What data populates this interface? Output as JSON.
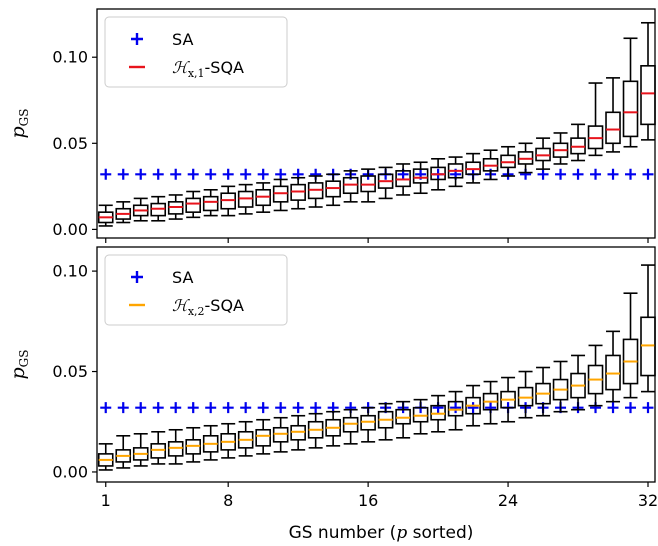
{
  "chart_data": [
    {
      "type": "box",
      "panel": "top",
      "ylabel": "p_GS",
      "xlabel": "",
      "ylim": [
        -0.005,
        0.128
      ],
      "xlim": [
        0.5,
        32.4
      ],
      "yticks": [
        0.0,
        0.05,
        0.1
      ],
      "ytick_labels": [
        "0.00",
        "0.05",
        "0.10"
      ],
      "xticks": [
        1,
        8,
        16,
        24,
        32
      ],
      "xtick_labels": [],
      "legend": {
        "placement": "top-left",
        "entries": [
          {
            "marker": "+",
            "color": "#0000ee",
            "label": "SA"
          },
          {
            "marker": "line",
            "color": "#e8141c",
            "label_main": "ℋ",
            "label_sub": "x,1",
            "label_suffix": "-SQA"
          }
        ]
      },
      "median_color": "#e8141c",
      "sa_series": {
        "name": "SA",
        "color": "#0000ee",
        "value": 0.032
      },
      "boxes": [
        {
          "x": 1,
          "whislo": 0.002,
          "q1": 0.004,
          "med": 0.007,
          "q3": 0.01,
          "whishi": 0.014
        },
        {
          "x": 2,
          "whislo": 0.004,
          "q1": 0.006,
          "med": 0.009,
          "q3": 0.012,
          "whishi": 0.016
        },
        {
          "x": 3,
          "whislo": 0.005,
          "q1": 0.008,
          "med": 0.011,
          "q3": 0.014,
          "whishi": 0.018
        },
        {
          "x": 4,
          "whislo": 0.005,
          "q1": 0.008,
          "med": 0.012,
          "q3": 0.015,
          "whishi": 0.019
        },
        {
          "x": 5,
          "whislo": 0.006,
          "q1": 0.009,
          "med": 0.013,
          "q3": 0.016,
          "whishi": 0.02
        },
        {
          "x": 6,
          "whislo": 0.007,
          "q1": 0.01,
          "med": 0.015,
          "q3": 0.018,
          "whishi": 0.022
        },
        {
          "x": 7,
          "whislo": 0.008,
          "q1": 0.011,
          "med": 0.016,
          "q3": 0.019,
          "whishi": 0.023
        },
        {
          "x": 8,
          "whislo": 0.008,
          "q1": 0.012,
          "med": 0.017,
          "q3": 0.021,
          "whishi": 0.025
        },
        {
          "x": 9,
          "whislo": 0.009,
          "q1": 0.013,
          "med": 0.018,
          "q3": 0.022,
          "whishi": 0.026
        },
        {
          "x": 10,
          "whislo": 0.01,
          "q1": 0.014,
          "med": 0.019,
          "q3": 0.023,
          "whishi": 0.027
        },
        {
          "x": 11,
          "whislo": 0.011,
          "q1": 0.016,
          "med": 0.021,
          "q3": 0.025,
          "whishi": 0.029
        },
        {
          "x": 12,
          "whislo": 0.012,
          "q1": 0.017,
          "med": 0.022,
          "q3": 0.026,
          "whishi": 0.03
        },
        {
          "x": 13,
          "whislo": 0.013,
          "q1": 0.018,
          "med": 0.023,
          "q3": 0.027,
          "whishi": 0.031
        },
        {
          "x": 14,
          "whislo": 0.014,
          "q1": 0.019,
          "med": 0.024,
          "q3": 0.028,
          "whishi": 0.032
        },
        {
          "x": 15,
          "whislo": 0.016,
          "q1": 0.021,
          "med": 0.026,
          "q3": 0.03,
          "whishi": 0.034
        },
        {
          "x": 16,
          "whislo": 0.016,
          "q1": 0.022,
          "med": 0.026,
          "q3": 0.031,
          "whishi": 0.035
        },
        {
          "x": 17,
          "whislo": 0.018,
          "q1": 0.024,
          "med": 0.028,
          "q3": 0.032,
          "whishi": 0.036
        },
        {
          "x": 18,
          "whislo": 0.02,
          "q1": 0.025,
          "med": 0.029,
          "q3": 0.034,
          "whishi": 0.038
        },
        {
          "x": 19,
          "whislo": 0.021,
          "q1": 0.027,
          "med": 0.03,
          "q3": 0.035,
          "whishi": 0.039
        },
        {
          "x": 20,
          "whislo": 0.023,
          "q1": 0.029,
          "med": 0.032,
          "q3": 0.036,
          "whishi": 0.041
        },
        {
          "x": 21,
          "whislo": 0.025,
          "q1": 0.03,
          "med": 0.034,
          "q3": 0.038,
          "whishi": 0.042
        },
        {
          "x": 22,
          "whislo": 0.027,
          "q1": 0.032,
          "med": 0.035,
          "q3": 0.039,
          "whishi": 0.044
        },
        {
          "x": 23,
          "whislo": 0.029,
          "q1": 0.034,
          "med": 0.037,
          "q3": 0.041,
          "whishi": 0.046
        },
        {
          "x": 24,
          "whislo": 0.031,
          "q1": 0.036,
          "med": 0.039,
          "q3": 0.043,
          "whishi": 0.048
        },
        {
          "x": 25,
          "whislo": 0.033,
          "q1": 0.038,
          "med": 0.041,
          "q3": 0.045,
          "whishi": 0.05
        },
        {
          "x": 26,
          "whislo": 0.035,
          "q1": 0.04,
          "med": 0.043,
          "q3": 0.047,
          "whishi": 0.053
        },
        {
          "x": 27,
          "whislo": 0.038,
          "q1": 0.042,
          "med": 0.046,
          "q3": 0.05,
          "whishi": 0.056
        },
        {
          "x": 28,
          "whislo": 0.04,
          "q1": 0.044,
          "med": 0.048,
          "q3": 0.053,
          "whishi": 0.061
        },
        {
          "x": 29,
          "whislo": 0.043,
          "q1": 0.047,
          "med": 0.053,
          "q3": 0.06,
          "whishi": 0.085
        },
        {
          "x": 30,
          "whislo": 0.045,
          "q1": 0.05,
          "med": 0.058,
          "q3": 0.068,
          "whishi": 0.088
        },
        {
          "x": 31,
          "whislo": 0.048,
          "q1": 0.054,
          "med": 0.068,
          "q3": 0.086,
          "whishi": 0.111
        },
        {
          "x": 32,
          "whislo": 0.052,
          "q1": 0.061,
          "med": 0.079,
          "q3": 0.095,
          "whishi": 0.12
        }
      ]
    },
    {
      "type": "box",
      "panel": "bottom",
      "ylabel": "p_GS",
      "xlabel": "GS number (p sorted)",
      "ylim": [
        -0.005,
        0.112
      ],
      "xlim": [
        0.5,
        32.4
      ],
      "yticks": [
        0.0,
        0.05,
        0.1
      ],
      "ytick_labels": [
        "0.00",
        "0.05",
        "0.10"
      ],
      "xticks": [
        1,
        8,
        16,
        24,
        32
      ],
      "xtick_labels": [
        "1",
        "8",
        "16",
        "24",
        "32"
      ],
      "legend": {
        "placement": "top-left",
        "entries": [
          {
            "marker": "+",
            "color": "#0000ee",
            "label": "SA"
          },
          {
            "marker": "line",
            "color": "#ffa500",
            "label_main": "ℋ",
            "label_sub": "x,2",
            "label_suffix": "-SQA"
          }
        ]
      },
      "median_color": "#ffa500",
      "sa_series": {
        "name": "SA",
        "color": "#0000ee",
        "value": 0.032
      },
      "boxes": [
        {
          "x": 1,
          "whislo": 0.001,
          "q1": 0.003,
          "med": 0.006,
          "q3": 0.009,
          "whishi": 0.014
        },
        {
          "x": 2,
          "whislo": 0.002,
          "q1": 0.005,
          "med": 0.008,
          "q3": 0.011,
          "whishi": 0.018
        },
        {
          "x": 3,
          "whislo": 0.003,
          "q1": 0.006,
          "med": 0.009,
          "q3": 0.012,
          "whishi": 0.019
        },
        {
          "x": 4,
          "whislo": 0.004,
          "q1": 0.007,
          "med": 0.011,
          "q3": 0.014,
          "whishi": 0.02
        },
        {
          "x": 5,
          "whislo": 0.004,
          "q1": 0.008,
          "med": 0.012,
          "q3": 0.015,
          "whishi": 0.021
        },
        {
          "x": 6,
          "whislo": 0.005,
          "q1": 0.009,
          "med": 0.013,
          "q3": 0.016,
          "whishi": 0.022
        },
        {
          "x": 7,
          "whislo": 0.006,
          "q1": 0.01,
          "med": 0.014,
          "q3": 0.018,
          "whishi": 0.023
        },
        {
          "x": 8,
          "whislo": 0.007,
          "q1": 0.011,
          "med": 0.015,
          "q3": 0.019,
          "whishi": 0.024
        },
        {
          "x": 9,
          "whislo": 0.008,
          "q1": 0.012,
          "med": 0.016,
          "q3": 0.02,
          "whishi": 0.025
        },
        {
          "x": 10,
          "whislo": 0.009,
          "q1": 0.013,
          "med": 0.018,
          "q3": 0.021,
          "whishi": 0.026
        },
        {
          "x": 11,
          "whislo": 0.01,
          "q1": 0.015,
          "med": 0.019,
          "q3": 0.022,
          "whishi": 0.027
        },
        {
          "x": 12,
          "whislo": 0.011,
          "q1": 0.016,
          "med": 0.02,
          "q3": 0.023,
          "whishi": 0.028
        },
        {
          "x": 13,
          "whislo": 0.012,
          "q1": 0.017,
          "med": 0.021,
          "q3": 0.025,
          "whishi": 0.029
        },
        {
          "x": 14,
          "whislo": 0.013,
          "q1": 0.018,
          "med": 0.022,
          "q3": 0.026,
          "whishi": 0.03
        },
        {
          "x": 15,
          "whislo": 0.014,
          "q1": 0.02,
          "med": 0.024,
          "q3": 0.027,
          "whishi": 0.031
        },
        {
          "x": 16,
          "whislo": 0.015,
          "q1": 0.021,
          "med": 0.025,
          "q3": 0.028,
          "whishi": 0.032
        },
        {
          "x": 17,
          "whislo": 0.016,
          "q1": 0.022,
          "med": 0.026,
          "q3": 0.03,
          "whishi": 0.034
        },
        {
          "x": 18,
          "whislo": 0.017,
          "q1": 0.024,
          "med": 0.027,
          "q3": 0.031,
          "whishi": 0.035
        },
        {
          "x": 19,
          "whislo": 0.019,
          "q1": 0.025,
          "med": 0.028,
          "q3": 0.032,
          "whishi": 0.036
        },
        {
          "x": 20,
          "whislo": 0.02,
          "q1": 0.026,
          "med": 0.029,
          "q3": 0.033,
          "whishi": 0.038
        },
        {
          "x": 21,
          "whislo": 0.021,
          "q1": 0.028,
          "med": 0.031,
          "q3": 0.035,
          "whishi": 0.04
        },
        {
          "x": 22,
          "whislo": 0.023,
          "q1": 0.029,
          "med": 0.033,
          "q3": 0.037,
          "whishi": 0.043
        },
        {
          "x": 23,
          "whislo": 0.024,
          "q1": 0.031,
          "med": 0.035,
          "q3": 0.039,
          "whishi": 0.045
        },
        {
          "x": 24,
          "whislo": 0.025,
          "q1": 0.032,
          "med": 0.036,
          "q3": 0.04,
          "whishi": 0.047
        },
        {
          "x": 25,
          "whislo": 0.027,
          "q1": 0.033,
          "med": 0.037,
          "q3": 0.042,
          "whishi": 0.05
        },
        {
          "x": 26,
          "whislo": 0.028,
          "q1": 0.034,
          "med": 0.039,
          "q3": 0.044,
          "whishi": 0.052
        },
        {
          "x": 27,
          "whislo": 0.03,
          "q1": 0.036,
          "med": 0.041,
          "q3": 0.046,
          "whishi": 0.055
        },
        {
          "x": 28,
          "whislo": 0.031,
          "q1": 0.037,
          "med": 0.043,
          "q3": 0.049,
          "whishi": 0.058
        },
        {
          "x": 29,
          "whislo": 0.033,
          "q1": 0.039,
          "med": 0.046,
          "q3": 0.053,
          "whishi": 0.063
        },
        {
          "x": 30,
          "whislo": 0.035,
          "q1": 0.041,
          "med": 0.049,
          "q3": 0.058,
          "whishi": 0.07
        },
        {
          "x": 31,
          "whislo": 0.037,
          "q1": 0.044,
          "med": 0.055,
          "q3": 0.066,
          "whishi": 0.089
        },
        {
          "x": 32,
          "whislo": 0.04,
          "q1": 0.048,
          "med": 0.063,
          "q3": 0.077,
          "whishi": 0.103
        }
      ]
    }
  ]
}
